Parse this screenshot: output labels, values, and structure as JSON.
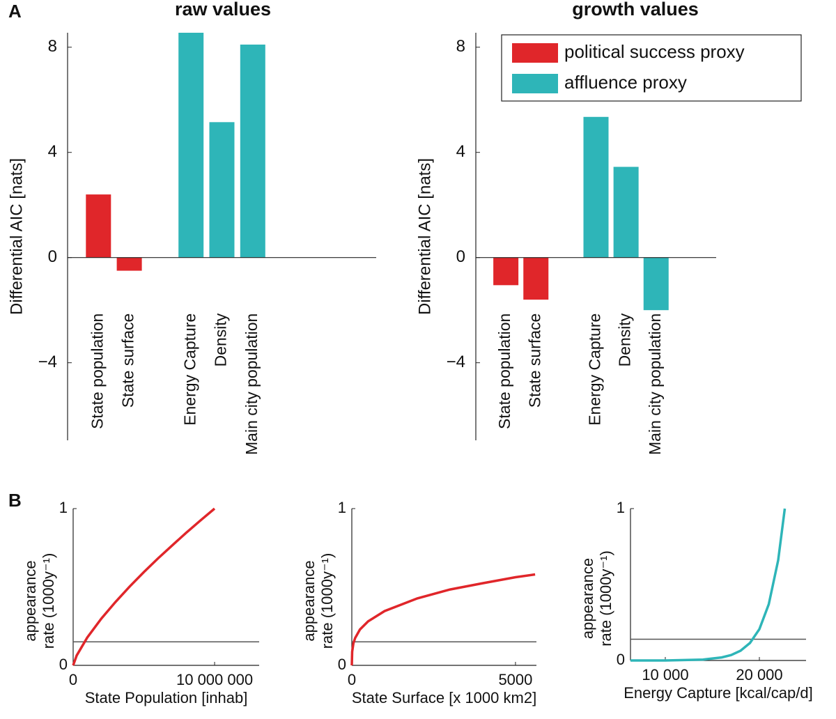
{
  "panel_labels": [
    "A",
    "B"
  ],
  "chart_data": [
    {
      "type": "bar",
      "title": "raw values",
      "ylabel": "Differential AIC [nats]",
      "categories": [
        "State population",
        "State surface",
        null,
        "Energy Capture",
        "Density",
        "Main city population",
        null,
        null,
        null
      ],
      "values": [
        2.4,
        -0.5,
        null,
        8.55,
        5.15,
        8.1,
        null,
        null,
        null
      ],
      "colors": [
        "#e0262a",
        "#e0262a",
        null,
        "#2eb5b8",
        "#2eb5b8",
        "#2eb5b8",
        null,
        null,
        null
      ],
      "ylim": [
        -6.95,
        8.55
      ],
      "yticks": [
        {
          "value": -4,
          "label": "−4"
        },
        0,
        4,
        8
      ]
    },
    {
      "type": "bar",
      "title": "growth values",
      "ylabel": "Differential AIC [nats]",
      "categories": [
        "State population",
        "State surface",
        null,
        "Energy Capture",
        "Density",
        "Main city population",
        null
      ],
      "values": [
        -1.05,
        -1.6,
        null,
        5.35,
        3.45,
        -2.0,
        null
      ],
      "colors": [
        "#e0262a",
        "#e0262a",
        null,
        "#2eb5b8",
        "#2eb5b8",
        "#2eb5b8",
        null
      ],
      "ylim": [
        -6.95,
        8.55
      ],
      "yticks": [
        {
          "value": -4,
          "label": "−4"
        },
        0,
        4,
        8
      ],
      "legend": {
        "loc": "upper right",
        "entries": [
          {
            "name": "political success proxy",
            "color": "#e0262a"
          },
          {
            "name": "affluence proxy",
            "color": "#2eb5b8"
          }
        ]
      }
    },
    {
      "type": "line",
      "xlabel": "State Population [inhab]",
      "ylabel": [
        "appearance",
        "rate (1000y⁻¹)"
      ],
      "x": [
        0,
        250000,
        1000000,
        2000000,
        3000000,
        4000000,
        5000000,
        6000000,
        7000000,
        8000000,
        9000000,
        10000000
      ],
      "values": [
        0,
        0.063,
        0.178,
        0.299,
        0.405,
        0.503,
        0.595,
        0.682,
        0.765,
        0.846,
        0.924,
        1
      ],
      "color": "#e0262a",
      "hline": 0.15,
      "xlim": [
        0,
        13150000
      ],
      "xticks": [
        0,
        {
          "value": 10000000,
          "label": "10 000 000"
        }
      ],
      "ylim": [
        0,
        1
      ],
      "yticks": [
        0,
        1
      ]
    },
    {
      "type": "line",
      "xlabel": "State Surface [x 1000 km2]",
      "ylabel": [
        "appearance",
        "rate (1000y⁻¹)"
      ],
      "x": [
        0,
        10,
        50,
        100,
        250,
        500,
        1000,
        2000,
        3000,
        4000,
        5000,
        5600
      ],
      "values": [
        0,
        0.087,
        0.141,
        0.174,
        0.229,
        0.281,
        0.346,
        0.427,
        0.484,
        0.524,
        0.562,
        0.58
      ],
      "color": "#e0262a",
      "hline": 0.15,
      "xlim": [
        0,
        5640
      ],
      "xticks": [
        0,
        5000
      ],
      "ylim": [
        0,
        1
      ],
      "yticks": [
        0,
        1
      ]
    },
    {
      "type": "line",
      "xlabel": "Energy Capture [kcal/cap/d]",
      "ylabel": [
        "appearance",
        "rate (1000y⁻¹)"
      ],
      "x": [
        6300,
        10000,
        14000,
        16000,
        17000,
        18000,
        19000,
        20000,
        21000,
        22000,
        22700
      ],
      "values": [
        0,
        0,
        0.006,
        0.02,
        0.036,
        0.064,
        0.115,
        0.206,
        0.37,
        0.66,
        1
      ],
      "color": "#2eb5b8",
      "hline": 0.14,
      "xlim": [
        6300,
        24960
      ],
      "xticks": [
        {
          "value": 10000,
          "label": "10 000"
        },
        {
          "value": 20000,
          "label": "20 000"
        }
      ],
      "ylim": [
        0,
        1
      ],
      "yticks": [
        0,
        1
      ]
    }
  ]
}
